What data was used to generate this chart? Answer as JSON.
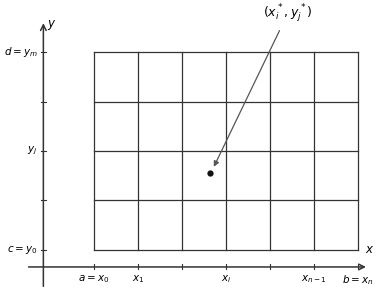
{
  "fig_width": 3.77,
  "fig_height": 2.93,
  "dpi": 100,
  "bg_color": "#ffffff",
  "x_tick_labels": [
    "$a = x_0$",
    "$x_1$",
    "",
    "$x_i$",
    "",
    "$x_{n-1}$",
    "$b = x_n$"
  ],
  "y_tick_labels": [
    "$c = y_0$",
    "",
    "$y_j$",
    "",
    "$d = y_m$"
  ],
  "annotation_text": "$(x_i^*, y_j^*)$",
  "arrow_color": "#555555",
  "point_color": "#111111",
  "line_color": "#333333",
  "axis_color": "#333333",
  "font_size": 8.5,
  "annot_font_size": 9
}
